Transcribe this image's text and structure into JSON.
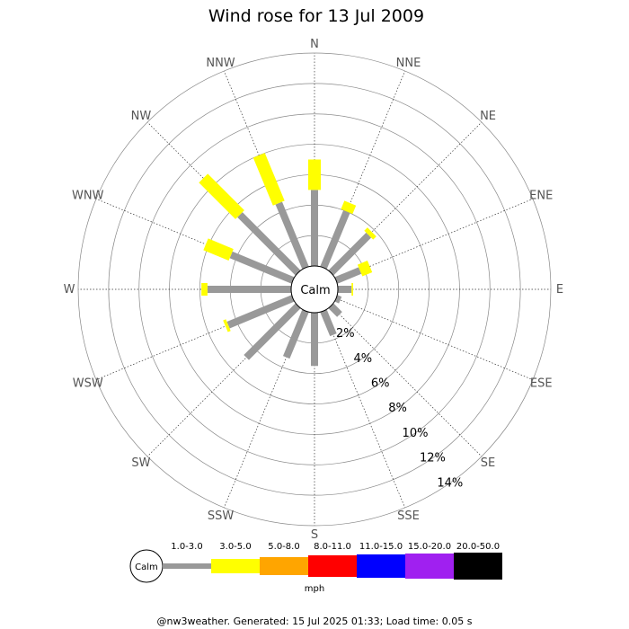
{
  "chart_data": {
    "type": "wind-rose",
    "title": "Wind rose for 13 Jul 2009",
    "center_label": "Calm",
    "directions": [
      "N",
      "NNE",
      "NE",
      "ENE",
      "E",
      "ESE",
      "SE",
      "SSE",
      "S",
      "SSW",
      "SW",
      "WSW",
      "W",
      "WNW",
      "NW",
      "NNW"
    ],
    "ring_labels": [
      "2%",
      "4%",
      "6%",
      "8%",
      "10%",
      "12%",
      "14%"
    ],
    "r_max_pct": 14,
    "speed_unit": "mph",
    "speed_bins": [
      {
        "label": "1.0-3.0",
        "color": "#999999"
      },
      {
        "label": "3.0-5.0",
        "color": "#ffff00"
      },
      {
        "label": "5.0-8.0",
        "color": "#ffa500"
      },
      {
        "label": "8.0-11.0",
        "color": "#ff0000"
      },
      {
        "label": "11.0-15.0",
        "color": "#0000ff"
      },
      {
        "label": "15.0-20.0",
        "color": "#a020f0"
      },
      {
        "label": "20.0-50.0",
        "color": "#000000"
      }
    ],
    "legend_calm_label": "Calm",
    "series": [
      {
        "name": "1.0-3.0",
        "values": [
          5.0,
          4.0,
          3.5,
          1.7,
          0.9,
          0.3,
          0.8,
          1.7,
          3.5,
          3.3,
          4.8,
          4.6,
          5.5,
          4.4,
          5.4,
          4.6
        ]
      },
      {
        "name": "3.0-5.0",
        "values": [
          2.0,
          0.6,
          0.3,
          0.7,
          0.1,
          0,
          0,
          0,
          0,
          0,
          0,
          0.2,
          0.4,
          1.8,
          3.4,
          3.4
        ]
      }
    ]
  },
  "footer": "@nw3weather. Generated: 15 Jul 2025 01:33; Load time: 0.05 s"
}
